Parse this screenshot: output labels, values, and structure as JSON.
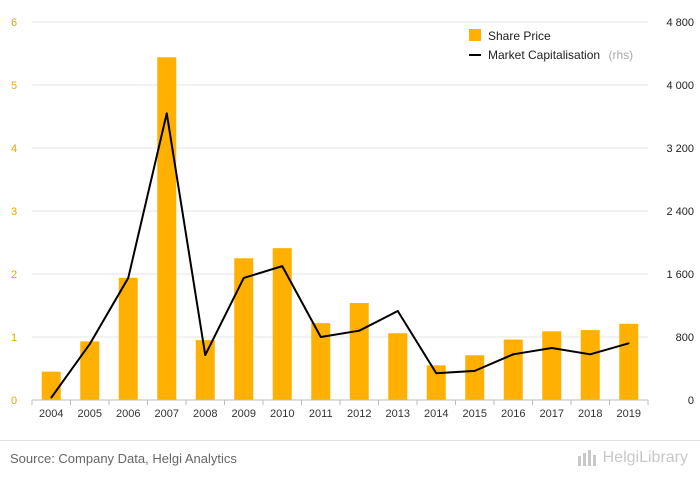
{
  "chart_data": {
    "type": "bar",
    "categories": [
      "2004",
      "2005",
      "2006",
      "2007",
      "2008",
      "2009",
      "2010",
      "2011",
      "2012",
      "2013",
      "2014",
      "2015",
      "2016",
      "2017",
      "2018",
      "2019"
    ],
    "series": [
      {
        "name": "Share Price",
        "type": "bar",
        "axis": "left",
        "color": "#ffb000",
        "values": [
          0.45,
          0.93,
          1.94,
          5.44,
          0.95,
          2.25,
          2.41,
          1.22,
          1.54,
          1.06,
          0.55,
          0.71,
          0.96,
          1.09,
          1.11,
          1.21
        ]
      },
      {
        "name": "Market Capitalisation",
        "name_suffix": "(rhs)",
        "type": "line",
        "axis": "right",
        "color": "#000000",
        "values": [
          30,
          710,
          1550,
          3640,
          570,
          1550,
          1700,
          800,
          880,
          1130,
          340,
          370,
          580,
          660,
          580,
          720
        ]
      }
    ],
    "y_left": {
      "min": 0,
      "max": 6,
      "ticks": [
        "0",
        "1",
        "2",
        "3",
        "4",
        "5",
        "6"
      ],
      "color": "#e8a500"
    },
    "y_right": {
      "min": 0,
      "max": 4800,
      "ticks": [
        "0",
        "800",
        "1 600",
        "2 400",
        "3 200",
        "4 000",
        "4 800"
      ]
    },
    "grid": true,
    "legend_position": "top-right"
  },
  "footer": {
    "source": "Source: Company Data, Helgi Analytics",
    "brand": "HelgiLibrary",
    "brand_icon": "building-icon"
  }
}
